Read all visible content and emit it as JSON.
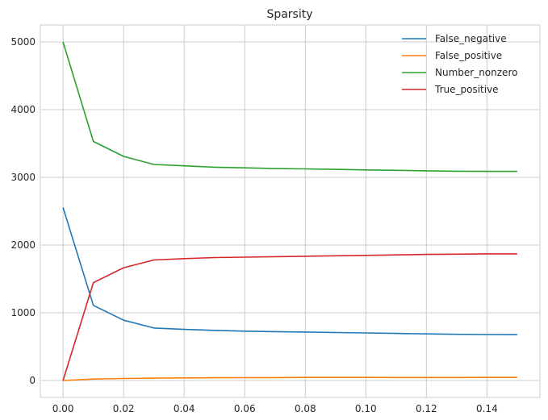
{
  "chart_data": {
    "type": "line",
    "title": "Sparsity",
    "xlabel": "",
    "ylabel": "",
    "xlim": [
      -0.0075,
      0.1575
    ],
    "ylim": [
      -250,
      5250
    ],
    "grid": true,
    "legend_position": "top-right",
    "x_ticks": [
      0.0,
      0.02,
      0.04,
      0.06,
      0.08,
      0.1,
      0.12,
      0.14
    ],
    "x_tick_labels": [
      "0.00",
      "0.02",
      "0.04",
      "0.06",
      "0.08",
      "0.10",
      "0.12",
      "0.14"
    ],
    "y_ticks": [
      0,
      1000,
      2000,
      3000,
      4000,
      5000
    ],
    "y_tick_labels": [
      "0",
      "1000",
      "2000",
      "3000",
      "4000",
      "5000"
    ],
    "x": [
      0.0,
      0.01,
      0.02,
      0.03,
      0.04,
      0.05,
      0.06,
      0.07,
      0.08,
      0.09,
      0.1,
      0.11,
      0.12,
      0.13,
      0.14,
      0.15
    ],
    "series": [
      {
        "name": "False_negative",
        "color": "#1f77b4",
        "values": [
          2555,
          1110,
          890,
          775,
          755,
          740,
          728,
          722,
          715,
          708,
          702,
          695,
          688,
          682,
          678,
          677
        ]
      },
      {
        "name": "False_positive",
        "color": "#ff7f0e",
        "values": [
          0,
          22,
          30,
          35,
          38,
          40,
          42,
          43,
          45,
          45,
          45,
          44,
          44,
          44,
          45,
          45
        ]
      },
      {
        "name": "Number_nonzero",
        "color": "#2ca02c",
        "values": [
          5000,
          3530,
          3310,
          3190,
          3170,
          3150,
          3140,
          3130,
          3125,
          3118,
          3110,
          3103,
          3096,
          3090,
          3088,
          3088
        ]
      },
      {
        "name": "True_positive",
        "color": "#d62728",
        "values": [
          0,
          1445,
          1665,
          1780,
          1800,
          1815,
          1822,
          1828,
          1835,
          1842,
          1848,
          1855,
          1862,
          1866,
          1870,
          1870
        ]
      }
    ]
  }
}
